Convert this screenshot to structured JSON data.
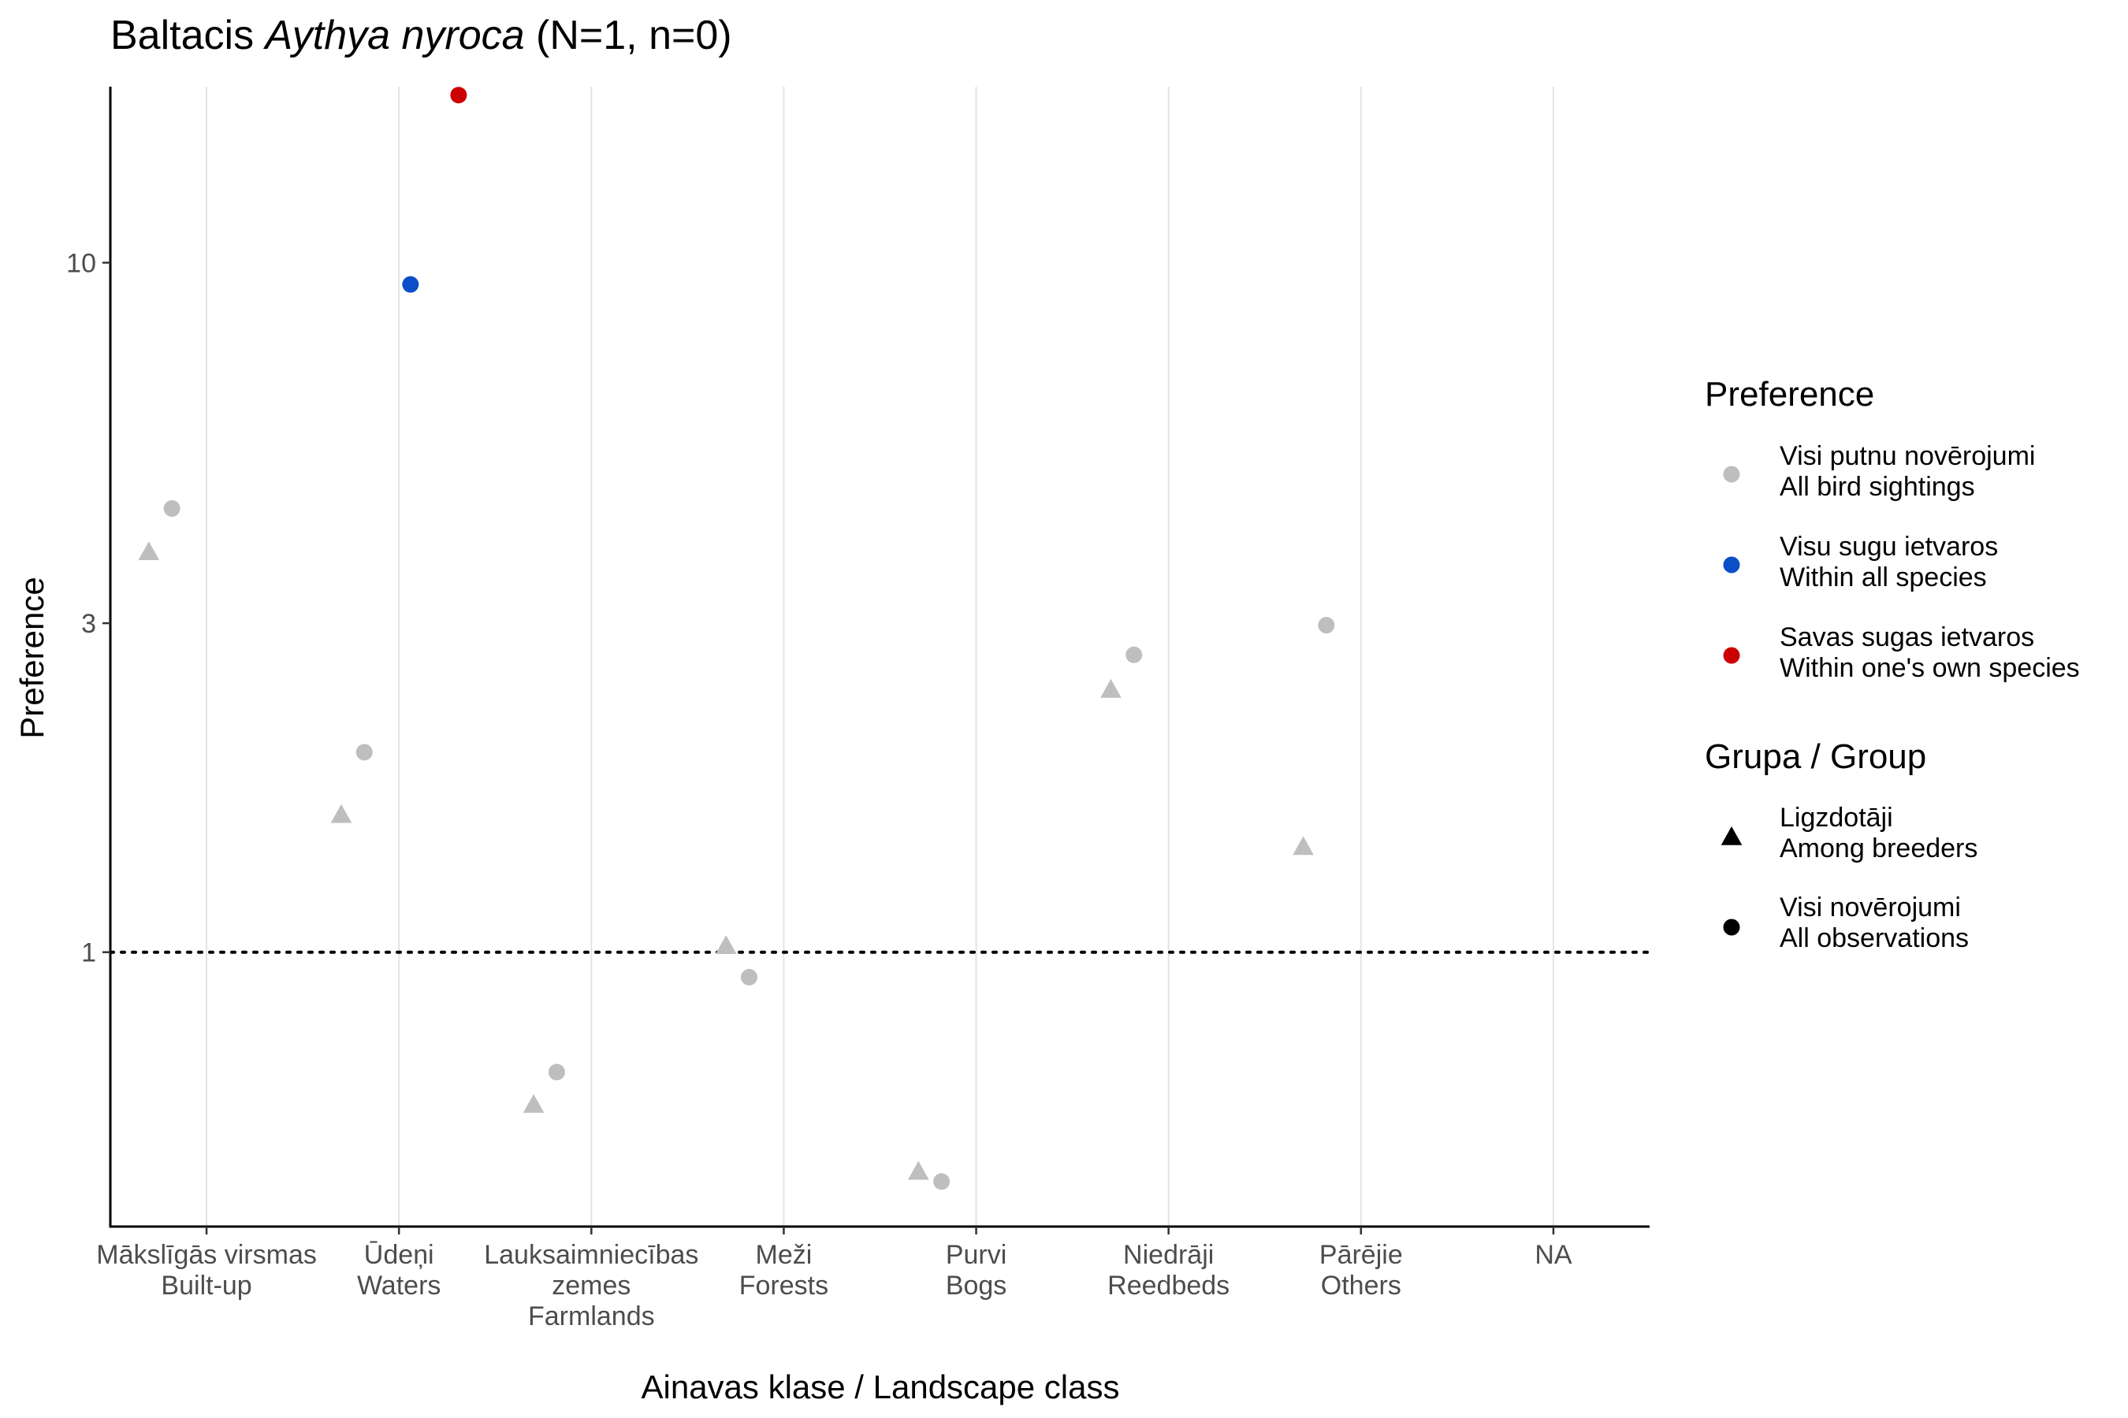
{
  "chart_data": {
    "type": "scatter",
    "title": {
      "prefix": "Baltacis ",
      "species": "Aythya nyroca",
      "suffix": " (N=1, n=0)"
    },
    "xlabel": "Ainavas klase / Landscape class",
    "ylabel": "Preference",
    "y_scale": "log",
    "ylim": [
      0.4,
      18
    ],
    "y_ticks": [
      {
        "value": 1,
        "label": "1"
      },
      {
        "value": 3,
        "label": "3"
      },
      {
        "value": 10,
        "label": "10"
      }
    ],
    "reference_line": {
      "y": 1,
      "style": "dotted"
    },
    "grid": {
      "vertical": true,
      "horizontal": false
    },
    "categories": [
      {
        "lines": [
          "Mākslīgās virsmas",
          "Built-up"
        ]
      },
      {
        "lines": [
          "Ūdeņi",
          "Waters"
        ]
      },
      {
        "lines": [
          "Lauksaimniecības",
          "zemes",
          "Farmlands"
        ]
      },
      {
        "lines": [
          "Meži",
          "Forests"
        ]
      },
      {
        "lines": [
          "Purvi",
          "Bogs"
        ]
      },
      {
        "lines": [
          "Niedrāji",
          "Reedbeds"
        ]
      },
      {
        "lines": [
          "Pārējie",
          "Others"
        ]
      },
      {
        "lines": [
          "NA"
        ]
      }
    ],
    "points": [
      {
        "category": 0,
        "offset": -0.3,
        "y": 3.8,
        "preference": "all_sightings",
        "group": "breeders"
      },
      {
        "category": 0,
        "offset": -0.18,
        "y": 4.4,
        "preference": "all_sightings",
        "group": "all_observations"
      },
      {
        "category": 1,
        "offset": -0.3,
        "y": 1.58,
        "preference": "all_sightings",
        "group": "breeders"
      },
      {
        "category": 1,
        "offset": -0.18,
        "y": 1.95,
        "preference": "all_sightings",
        "group": "all_observations"
      },
      {
        "category": 1,
        "offset": 0.06,
        "y": 9.3,
        "preference": "within_all_species",
        "group": "all_observations"
      },
      {
        "category": 1,
        "offset": 0.31,
        "y": 17.5,
        "preference": "within_own_species",
        "group": "all_observations"
      },
      {
        "category": 2,
        "offset": -0.3,
        "y": 0.6,
        "preference": "all_sightings",
        "group": "breeders"
      },
      {
        "category": 2,
        "offset": -0.18,
        "y": 0.67,
        "preference": "all_sightings",
        "group": "all_observations"
      },
      {
        "category": 3,
        "offset": -0.3,
        "y": 1.02,
        "preference": "all_sightings",
        "group": "breeders"
      },
      {
        "category": 3,
        "offset": -0.18,
        "y": 0.92,
        "preference": "all_sightings",
        "group": "all_observations"
      },
      {
        "category": 4,
        "offset": -0.3,
        "y": 0.48,
        "preference": "all_sightings",
        "group": "breeders"
      },
      {
        "category": 4,
        "offset": -0.18,
        "y": 0.465,
        "preference": "all_sightings",
        "group": "all_observations"
      },
      {
        "category": 5,
        "offset": -0.3,
        "y": 2.4,
        "preference": "all_sightings",
        "group": "breeders"
      },
      {
        "category": 5,
        "offset": -0.18,
        "y": 2.7,
        "preference": "all_sightings",
        "group": "all_observations"
      },
      {
        "category": 6,
        "offset": -0.3,
        "y": 1.42,
        "preference": "all_sightings",
        "group": "breeders"
      },
      {
        "category": 6,
        "offset": -0.18,
        "y": 2.98,
        "preference": "all_sightings",
        "group": "all_observations"
      }
    ],
    "legend": {
      "placement": "right",
      "preference": {
        "title": "Preference",
        "items": [
          {
            "key": "all_sightings",
            "color": "#bebebe",
            "line1": "Visi putnu novērojumi",
            "line2": "All bird sightings"
          },
          {
            "key": "within_all_species",
            "color": "#0a4fc7",
            "line1": "Visu sugu ietvaros",
            "line2": "Within all species"
          },
          {
            "key": "within_own_species",
            "color": "#cc0000",
            "line1": "Savas sugas ietvaros",
            "line2": "Within one's own species"
          }
        ]
      },
      "group": {
        "title": "Grupa / Group",
        "items": [
          {
            "key": "breeders",
            "shape": "triangle",
            "line1": "Ligzdotāji",
            "line2": "Among breeders"
          },
          {
            "key": "all_observations",
            "shape": "circle",
            "line1": "Visi novērojumi",
            "line2": "All observations"
          }
        ]
      }
    }
  }
}
